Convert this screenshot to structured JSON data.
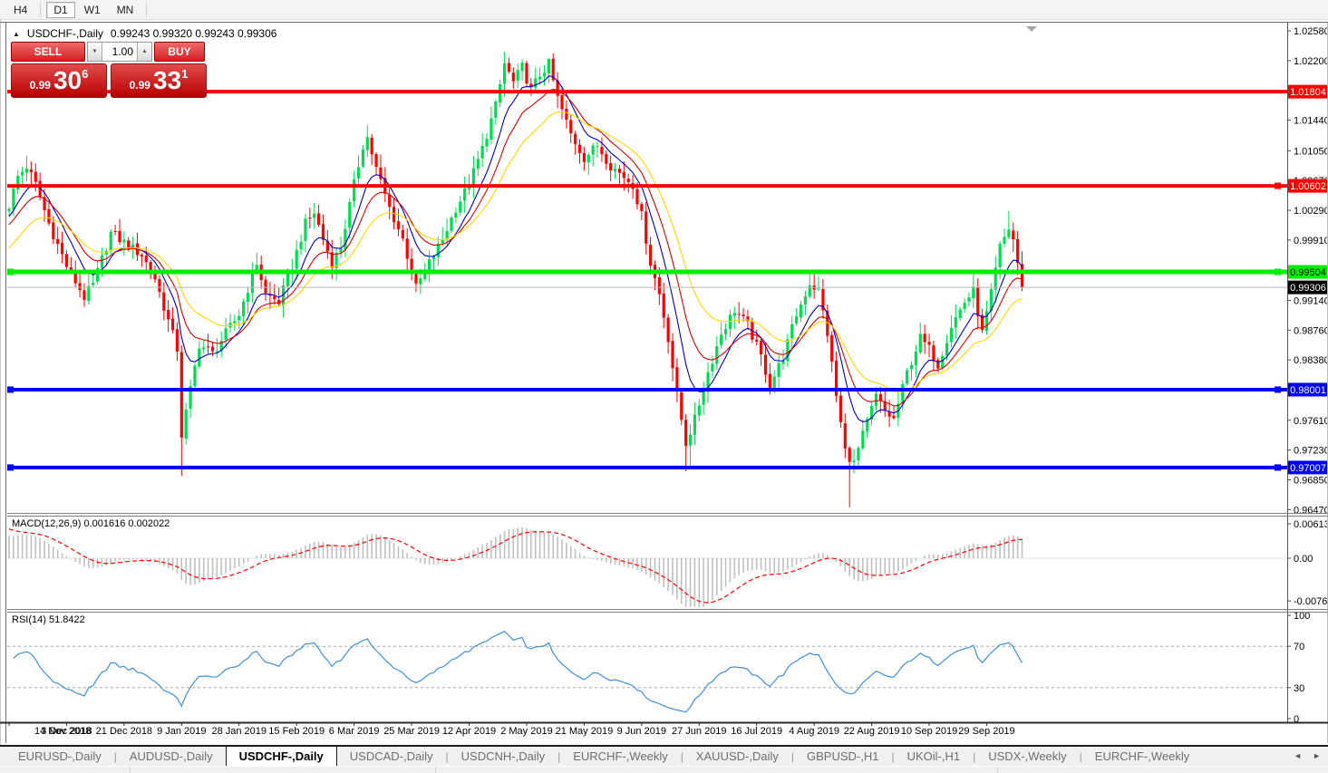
{
  "toolbar": {
    "timeframes": [
      {
        "label": "H4",
        "active": false
      },
      {
        "label": "D1",
        "active": true
      },
      {
        "label": "W1",
        "active": false
      },
      {
        "label": "MN",
        "active": false
      }
    ]
  },
  "chart_header": {
    "collapse_arrow": "▲",
    "title": "USDCHF-,Daily",
    "ohlc": "0.99243 0.99320 0.99243 0.99306"
  },
  "trade_panel": {
    "sell_label": "SELL",
    "buy_label": "BUY",
    "volume_value": "1.00",
    "spin_down": "▼",
    "spin_up": "▲",
    "sell_price": {
      "small": "0.99",
      "big": "30",
      "sup": "6"
    },
    "buy_price": {
      "small": "0.99",
      "big": "33",
      "sup": "1"
    }
  },
  "indicator_headers": {
    "macd_title": "MACD(12,26,9)",
    "macd_values": "0.001616 0.002022",
    "rsi_title": "RSI(14)",
    "rsi_value": "51.8422"
  },
  "tabs": {
    "items": [
      {
        "label": "EURUSD-,Daily",
        "active": false
      },
      {
        "label": "AUDUSD-,Daily",
        "active": false
      },
      {
        "label": "USDCHF-,Daily",
        "active": true
      },
      {
        "label": "USDCAD-,Daily",
        "active": false
      },
      {
        "label": "USDCNH-,Daily",
        "active": false
      },
      {
        "label": "EURCHF-,Weekly",
        "active": false
      },
      {
        "label": "XAUUSD-,Daily",
        "active": false
      },
      {
        "label": "GBPUSD-,H1",
        "active": false
      },
      {
        "label": "UKOil-,H1",
        "active": false
      },
      {
        "label": "USDX-,Weekly",
        "active": false
      },
      {
        "label": "EURCHF-,Weekly",
        "active": false
      }
    ],
    "scroll_left": "◄",
    "scroll_right": "►"
  },
  "chart_data": {
    "type": "candlestick",
    "symbol": "USDCHF-",
    "timeframe": "Daily",
    "visible_ohlc": {
      "open": 0.99243,
      "high": 0.9932,
      "low": 0.99243,
      "close": 0.99306
    },
    "total_candles": 230,
    "first_open": 1.0028,
    "x_tick_step": 13,
    "x_tick_labels": [
      "14 Nov 2018",
      "3 Dec 2018",
      "21 Dec 2018",
      "9 Jan 2019",
      "28 Jan 2019",
      "15 Feb 2019",
      "6 Mar 2019",
      "25 Mar 2019",
      "12 Apr 2019",
      "2 May 2019",
      "21 May 2019",
      "9 Jun 2019",
      "27 Jun 2019",
      "16 Jul 2019",
      "4 Aug 2019",
      "22 Aug 2019",
      "10 Sep 2019",
      "29 Sep 2019"
    ],
    "y_axis_ticks": [
      {
        "label": "1.02580",
        "price": 1.0258
      },
      {
        "label": "1.02200",
        "price": 1.022
      },
      {
        "label": "1.01440",
        "price": 1.0144
      },
      {
        "label": "1.01050",
        "price": 1.0105
      },
      {
        "label": "1.00670",
        "price": 1.0067
      },
      {
        "label": "1.00290",
        "price": 1.0029
      },
      {
        "label": "0.99910",
        "price": 0.9991
      },
      {
        "label": "0.99140",
        "price": 0.9914
      },
      {
        "label": "0.98760",
        "price": 0.9876
      },
      {
        "label": "0.98380",
        "price": 0.9838
      },
      {
        "label": "0.97610",
        "price": 0.9761
      },
      {
        "label": "0.97230",
        "price": 0.9723
      },
      {
        "label": "0.96850",
        "price": 0.9685
      },
      {
        "label": "0.96470",
        "price": 0.9647
      }
    ],
    "price_range": {
      "top": 1.0265,
      "bottom": 0.9643
    },
    "close_keyframes": [
      [
        0,
        1.0035
      ],
      [
        2,
        1.0072
      ],
      [
        4,
        1.0085
      ],
      [
        6,
        1.0062
      ],
      [
        9,
        1.0012
      ],
      [
        13,
        0.9958
      ],
      [
        17,
        0.9918
      ],
      [
        19,
        0.9934
      ],
      [
        23,
        1.0
      ],
      [
        26,
        0.9988
      ],
      [
        30,
        0.9972
      ],
      [
        33,
        0.9942
      ],
      [
        36,
        0.9888
      ],
      [
        38,
        0.9852
      ],
      [
        39,
        0.9742
      ],
      [
        41,
        0.98
      ],
      [
        43,
        0.9858
      ],
      [
        46,
        0.9846
      ],
      [
        49,
        0.9872
      ],
      [
        52,
        0.9896
      ],
      [
        56,
        0.9962
      ],
      [
        58,
        0.9922
      ],
      [
        61,
        0.9912
      ],
      [
        64,
        0.9958
      ],
      [
        67,
        1.0012
      ],
      [
        69,
        1.0026
      ],
      [
        71,
        0.9992
      ],
      [
        73,
        0.9962
      ],
      [
        75,
        0.9982
      ],
      [
        78,
        1.0062
      ],
      [
        80,
        1.0112
      ],
      [
        81,
        1.0122
      ],
      [
        83,
        1.0082
      ],
      [
        86,
        1.0032
      ],
      [
        89,
        0.9992
      ],
      [
        92,
        0.993
      ],
      [
        95,
        0.9962
      ],
      [
        98,
        0.9992
      ],
      [
        101,
        1.0032
      ],
      [
        104,
        1.0062
      ],
      [
        107,
        1.0108
      ],
      [
        110,
        1.0162
      ],
      [
        112,
        1.0216
      ],
      [
        114,
        1.0192
      ],
      [
        116,
        1.0212
      ],
      [
        118,
        1.0182
      ],
      [
        120,
        1.0202
      ],
      [
        122,
        1.0216
      ],
      [
        124,
        1.0172
      ],
      [
        127,
        1.0126
      ],
      [
        130,
        1.0096
      ],
      [
        133,
        1.0112
      ],
      [
        136,
        1.0086
      ],
      [
        139,
        1.0072
      ],
      [
        141,
        1.0062
      ],
      [
        143,
        1.0022
      ],
      [
        145,
        0.9962
      ],
      [
        147,
        0.9922
      ],
      [
        149,
        0.9866
      ],
      [
        151,
        0.9792
      ],
      [
        153,
        0.9732
      ],
      [
        155,
        0.9762
      ],
      [
        158,
        0.9822
      ],
      [
        161,
        0.9872
      ],
      [
        164,
        0.9902
      ],
      [
        167,
        0.9882
      ],
      [
        170,
        0.9842
      ],
      [
        172,
        0.9806
      ],
      [
        175,
        0.9842
      ],
      [
        178,
        0.9896
      ],
      [
        181,
        0.9936
      ],
      [
        183,
        0.9926
      ],
      [
        185,
        0.9872
      ],
      [
        187,
        0.9792
      ],
      [
        189,
        0.9722
      ],
      [
        191,
        0.9706
      ],
      [
        193,
        0.9742
      ],
      [
        196,
        0.9792
      ],
      [
        198,
        0.9772
      ],
      [
        200,
        0.9762
      ],
      [
        203,
        0.9822
      ],
      [
        206,
        0.9866
      ],
      [
        208,
        0.9852
      ],
      [
        210,
        0.9832
      ],
      [
        213,
        0.9882
      ],
      [
        216,
        0.9912
      ],
      [
        218,
        0.9926
      ],
      [
        220,
        0.9872
      ],
      [
        222,
        0.9922
      ],
      [
        224,
        0.9982
      ],
      [
        226,
        1.0006
      ],
      [
        227,
        0.9992
      ],
      [
        228,
        0.9962
      ],
      [
        229,
        0.9931
      ]
    ],
    "extremes": [
      {
        "i": 39,
        "low": 0.969
      },
      {
        "i": 112,
        "high": 1.0231
      },
      {
        "i": 122,
        "high": 1.0221
      },
      {
        "i": 153,
        "low": 0.9696
      },
      {
        "i": 154,
        "low": 0.97
      },
      {
        "i": 190,
        "low": 0.965
      },
      {
        "i": 226,
        "high": 1.0028
      }
    ],
    "hlines": [
      {
        "price": 1.01804,
        "label": "1.01804",
        "color": "#ff0000",
        "text_color": "#ffffff",
        "width": 4,
        "handles": []
      },
      {
        "price": 1.00602,
        "label": "1.00602",
        "color": "#ff0000",
        "text_color": "#ffffff",
        "width": 4,
        "handles": [
          "right"
        ]
      },
      {
        "price": 0.99504,
        "label": "0.99504",
        "color": "#00ee00",
        "text_color": "#000000",
        "width": 5,
        "handles": [
          "left",
          "right"
        ]
      },
      {
        "price": 0.98001,
        "label": "0.98001",
        "color": "#0000ff",
        "text_color": "#ffffff",
        "width": 4,
        "handles": [
          "left",
          "right"
        ]
      },
      {
        "price": 0.97007,
        "label": "0.97007",
        "color": "#0000ff",
        "text_color": "#ffffff",
        "width": 4,
        "handles": [
          "left",
          "right"
        ]
      }
    ],
    "current_price": {
      "price": 0.99306,
      "label": "0.99306",
      "line_color": "#b8b8b8",
      "label_bg": "#000000",
      "label_text": "#ffffff"
    },
    "candle_colors": {
      "bull": "#00dc50",
      "bear": "#ff0000"
    },
    "ma_lines": [
      {
        "period": 8,
        "color": "#0000c8",
        "seed": -0.001
      },
      {
        "period": 14,
        "color": "#dd0000",
        "seed": -0.002
      },
      {
        "period": 24,
        "color": "#ffd700",
        "seed": -0.005
      }
    ],
    "macd": {
      "params": [
        12,
        26,
        9
      ],
      "display_main": 0.001616,
      "display_signal": 0.002022,
      "axis": [
        {
          "label": "0.00613",
          "value": 0.00613
        },
        {
          "label": "0.00",
          "value": 0
        },
        {
          "label": "-0.00761",
          "value": -0.00761
        }
      ],
      "hist_color": "#c0c0c0",
      "signal_color": "#ff0000"
    },
    "rsi": {
      "period": 14,
      "display_value": 51.8422,
      "axis": [
        {
          "label": "100",
          "value": 100
        },
        {
          "label": "70",
          "value": 70
        },
        {
          "label": "30",
          "value": 30
        },
        {
          "label": "0",
          "value": 0
        }
      ],
      "levels": [
        70,
        30
      ],
      "color": "#4090d8"
    }
  }
}
